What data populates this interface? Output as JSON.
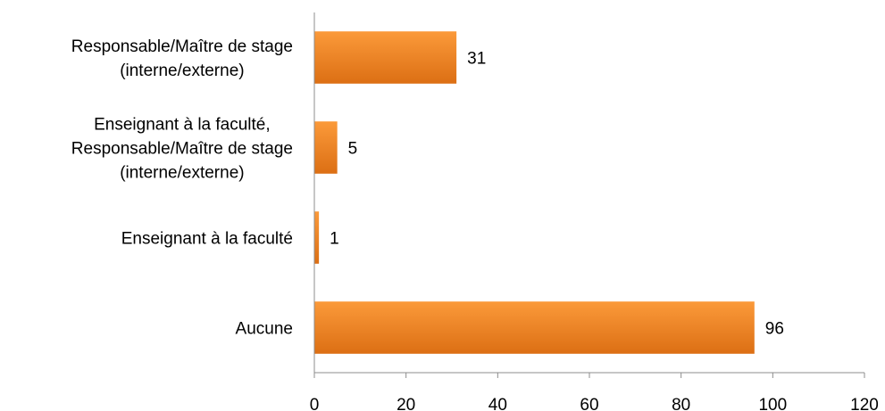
{
  "chart_data": {
    "type": "bar",
    "orientation": "horizontal",
    "categories": [
      [
        "Responsable/Maître de stage",
        "(interne/externe)"
      ],
      [
        "Enseignant à la faculté,",
        "Responsable/Maître de stage",
        "(interne/externe)"
      ],
      [
        "Enseignant à la faculté"
      ],
      [
        "Aucune"
      ]
    ],
    "values": [
      31,
      5,
      1,
      96
    ],
    "data_labels": [
      "31",
      "5",
      "1",
      "96"
    ],
    "xlim": [
      0,
      120
    ],
    "x_ticks": [
      0,
      20,
      40,
      60,
      80,
      100,
      120
    ],
    "x_tick_labels": [
      "0",
      "20",
      "40",
      "60",
      "80",
      "100",
      "120"
    ],
    "title": "",
    "xlabel": "",
    "ylabel": "",
    "grid": false,
    "legend": "none",
    "bar_color": "#f0801f",
    "bar_color_light": "#fb9a3a",
    "axis_color": "#8c8c8c"
  }
}
